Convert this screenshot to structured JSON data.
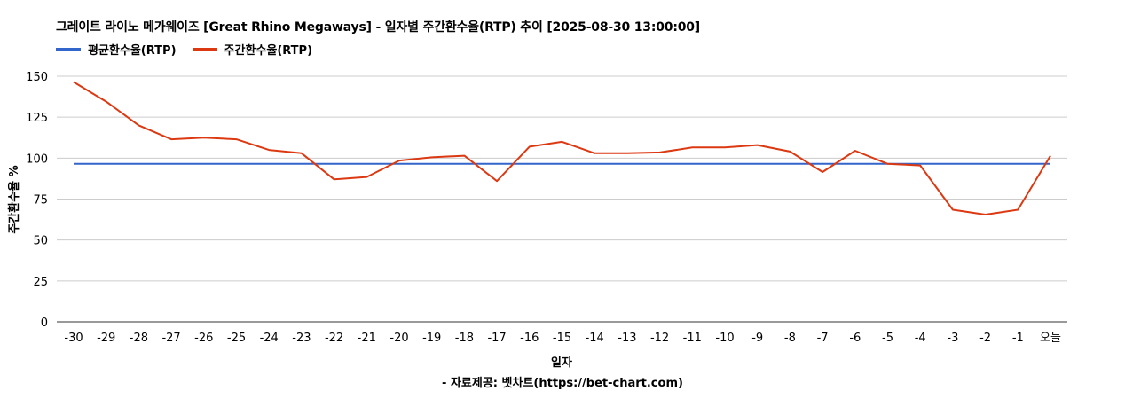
{
  "title": "그레이트 라이노 메가웨이즈 [Great Rhino Megaways] - 일자별 주간환수율(RTP) 추이 [2025-08-30 13:00:00]",
  "source": "- 자료제공: 벳차트(https://bet-chart.com)",
  "legend": [
    {
      "label": "평균환수율(RTP)",
      "color": "#3366cc"
    },
    {
      "label": "주간환수율(RTP)",
      "color": "#dc3912"
    }
  ],
  "chart_data": {
    "type": "line",
    "title": "그레이트 라이노 메가웨이즈 [Great Rhino Megaways] - 일자별 주간환수율(RTP) 추이 [2025-08-30 13:00:00]",
    "xlabel": "일자",
    "ylabel": "주간환수율 %",
    "ylim": [
      0,
      150
    ],
    "yticks": [
      0,
      25,
      50,
      75,
      100,
      125,
      150
    ],
    "grid": true,
    "legend_position": "top-left",
    "categories": [
      "-30",
      "-29",
      "-28",
      "-27",
      "-26",
      "-25",
      "-24",
      "-23",
      "-22",
      "-21",
      "-20",
      "-19",
      "-18",
      "-17",
      "-16",
      "-15",
      "-14",
      "-13",
      "-12",
      "-11",
      "-10",
      "-9",
      "-8",
      "-7",
      "-6",
      "-5",
      "-4",
      "-3",
      "-2",
      "-1",
      "오늘"
    ],
    "series": [
      {
        "name": "평균환수율(RTP)",
        "color": "#3366cc",
        "values": [
          96.5,
          96.5,
          96.5,
          96.5,
          96.5,
          96.5,
          96.5,
          96.5,
          96.5,
          96.5,
          96.5,
          96.5,
          96.5,
          96.5,
          96.5,
          96.5,
          96.5,
          96.5,
          96.5,
          96.5,
          96.5,
          96.5,
          96.5,
          96.5,
          96.5,
          96.5,
          96.5,
          96.5,
          96.5,
          96.5,
          96.5
        ]
      },
      {
        "name": "주간환수율(RTP)",
        "color": "#dc3912",
        "values": [
          146.5,
          134.5,
          120,
          111.5,
          112.5,
          111.5,
          105,
          103,
          87,
          88.5,
          98.5,
          100.5,
          101.5,
          86,
          107,
          110,
          103,
          103,
          103.5,
          106.5,
          106.5,
          108,
          104,
          91.5,
          104.5,
          96.5,
          95.5,
          68.5,
          65.5,
          68.5,
          101.5
        ]
      }
    ]
  }
}
